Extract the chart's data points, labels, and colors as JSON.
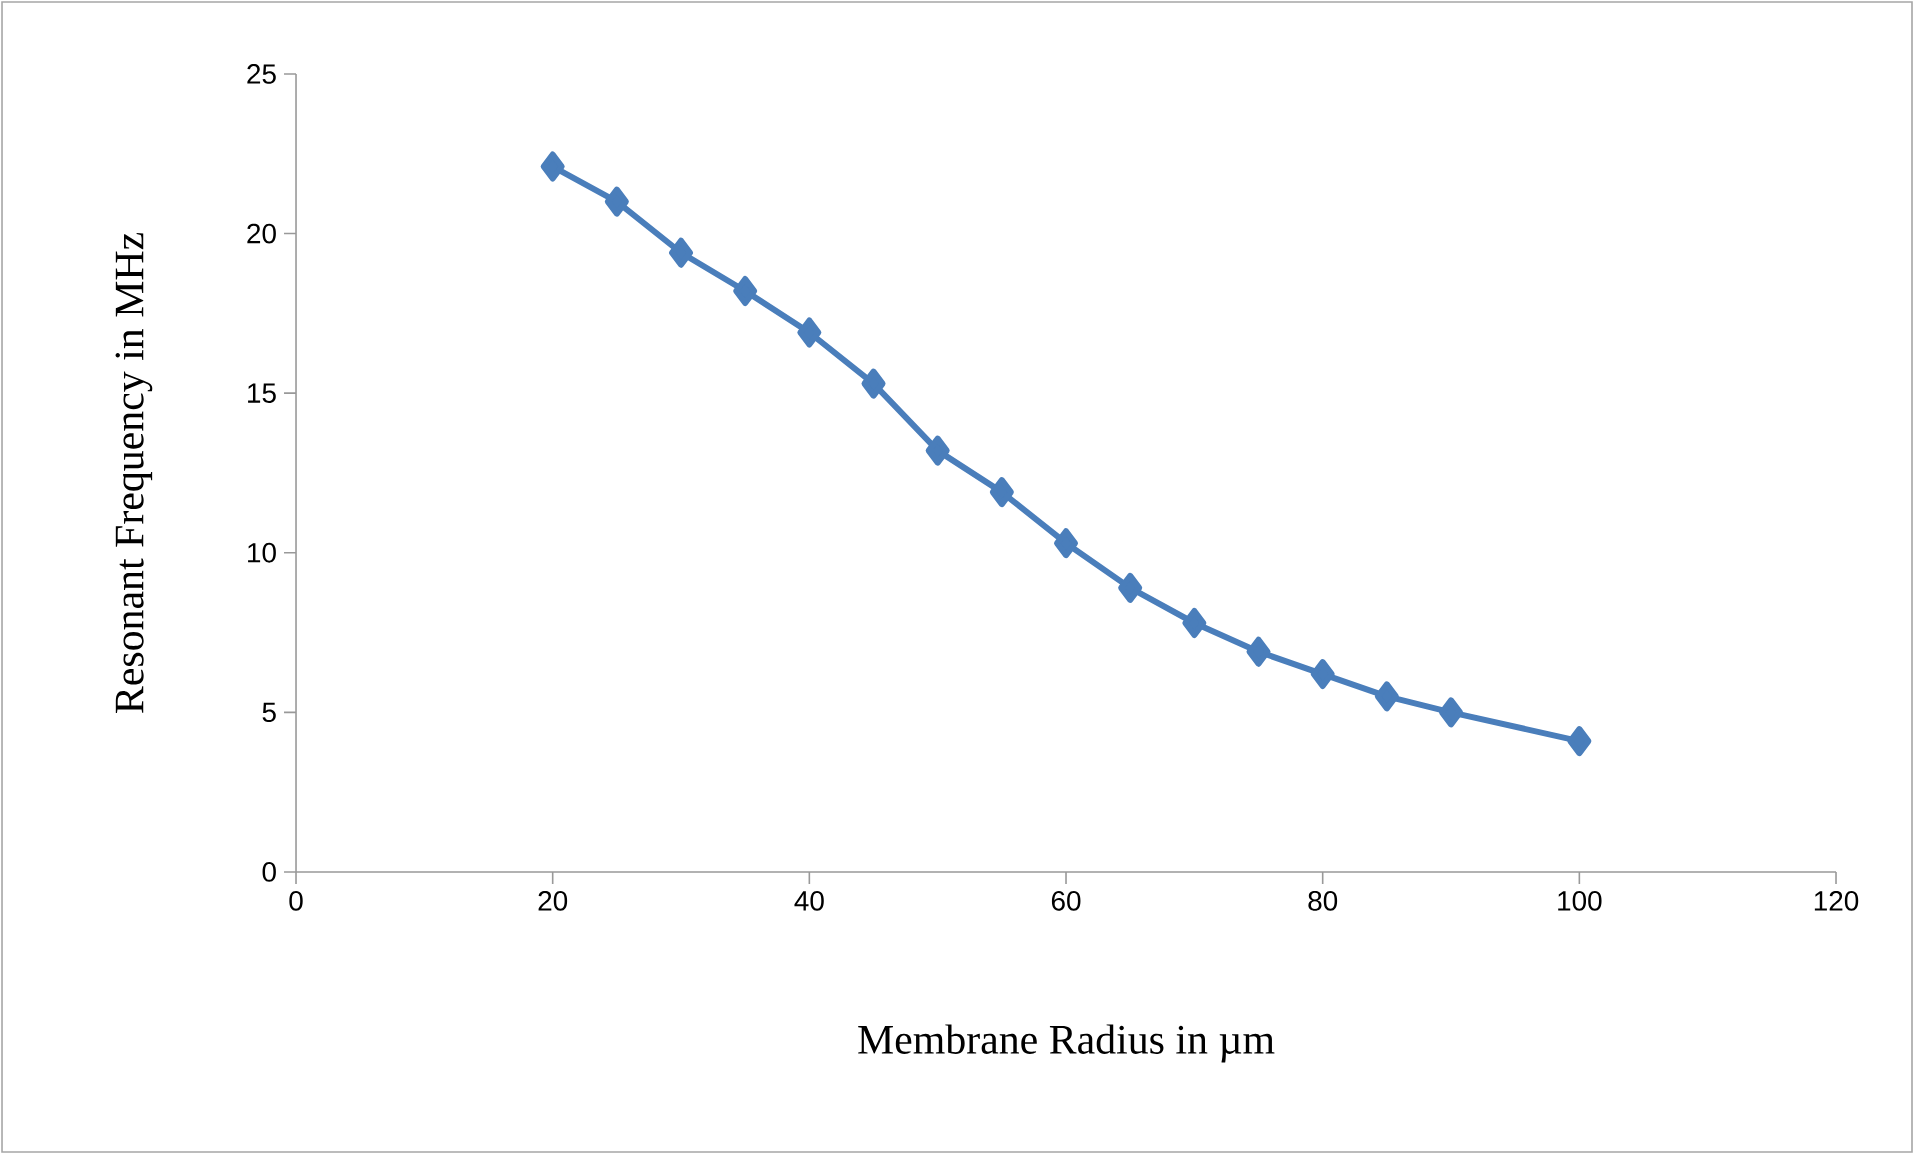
{
  "chart_data": {
    "type": "line",
    "xlabel": "Membrane Radius in µm",
    "ylabel": "Resonant Frequency in MHz",
    "x": [
      20,
      25,
      30,
      35,
      40,
      45,
      50,
      55,
      60,
      65,
      70,
      75,
      80,
      85,
      90,
      100
    ],
    "values": [
      22.1,
      21.0,
      19.4,
      18.2,
      16.9,
      15.3,
      13.2,
      11.9,
      10.3,
      8.9,
      7.8,
      6.9,
      6.2,
      5.5,
      5.0,
      4.1
    ],
    "color": "#4a7ebb",
    "marker": "diamond",
    "line_style": "solid",
    "xlim": [
      0,
      120
    ],
    "xticks": [
      0,
      20,
      40,
      60,
      80,
      100,
      120
    ],
    "ylim": [
      0,
      25
    ],
    "yticks": [
      0,
      5,
      10,
      15,
      20,
      25
    ]
  }
}
